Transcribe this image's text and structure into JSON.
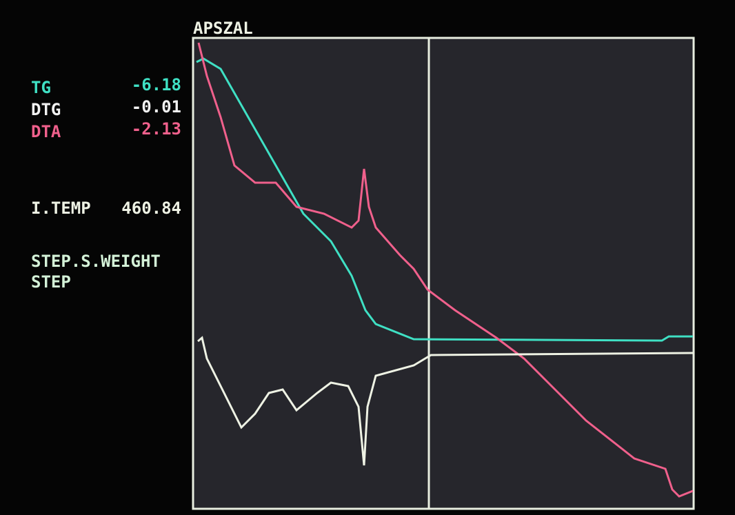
{
  "title": "APSZAL",
  "readouts": [
    {
      "label": "TG",
      "value": "-6.18"
    },
    {
      "label": "DTG",
      "value": "-0.01"
    },
    {
      "label": "DTA",
      "value": "-2.13"
    }
  ],
  "temperature": {
    "label": "I.TEMP",
    "value": "460.84"
  },
  "status": [
    "STEP.S.WEIGHT",
    "STEP"
  ]
}
